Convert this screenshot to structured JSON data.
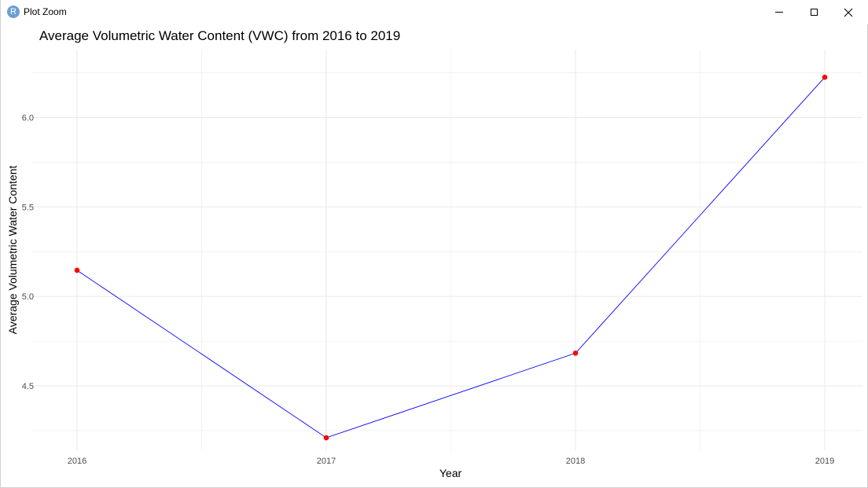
{
  "window": {
    "title": "Plot Zoom",
    "app_icon_letter": "R"
  },
  "chart_data": {
    "type": "line",
    "title": "Average Volumetric Water Content (VWC) from 2016 to 2019",
    "xlabel": "Year",
    "ylabel": "Average Volumetric Water Content",
    "categories": [
      "2016",
      "2017",
      "2018",
      "2019"
    ],
    "series": [
      {
        "values": [
          5.146,
          4.21,
          4.683,
          6.225
        ]
      }
    ],
    "yticks": [
      4.5,
      5.0,
      5.5,
      6.0
    ],
    "ytick_labels": [
      "4.5",
      "5.0",
      "5.5",
      "6.0"
    ],
    "ylim": [
      4.14,
      6.38
    ],
    "grid": true,
    "line_color": "#0000ff",
    "point_color": "#ff0000",
    "gridline_color": "#ebebeb"
  }
}
